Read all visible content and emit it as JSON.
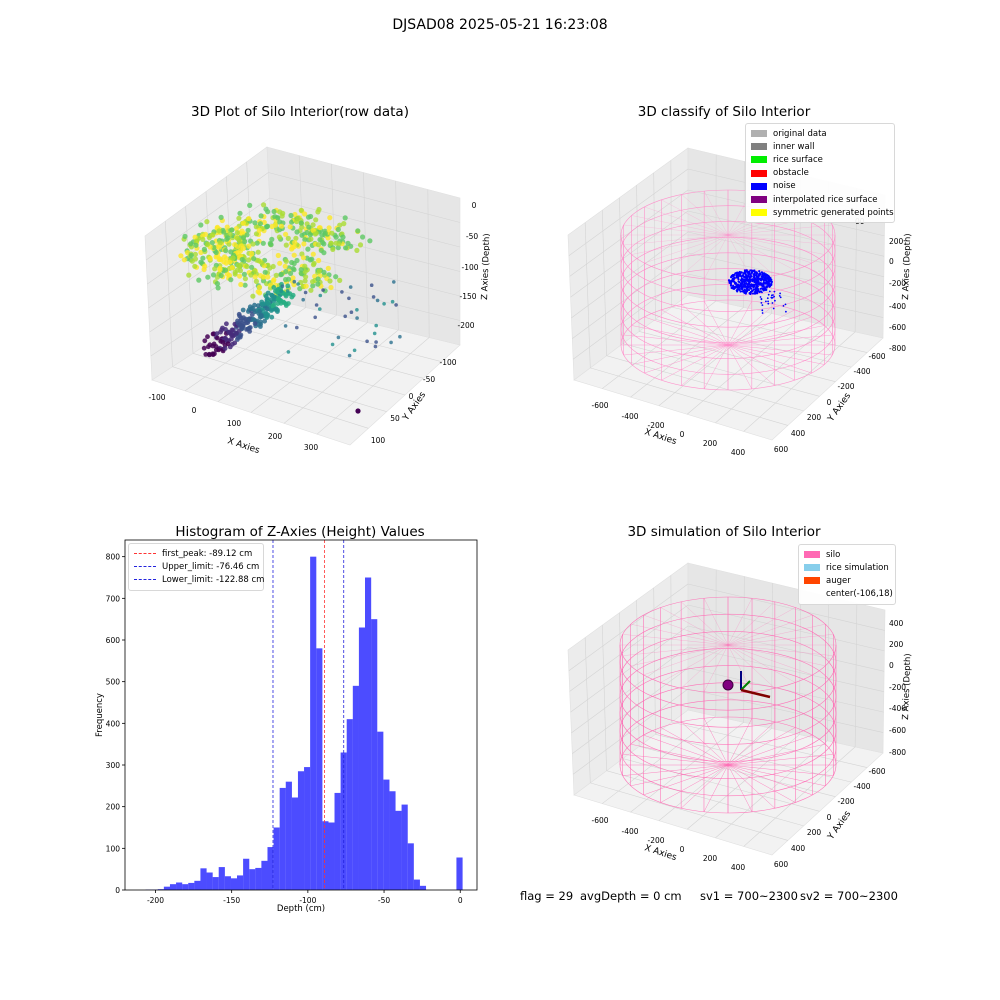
{
  "figure": {
    "suptitle": "DJSAD08 2025-05-21 16:23:08"
  },
  "footer": {
    "flag": "flag = 29",
    "avg_depth": "avgDepth = 0 cm",
    "sv1": "sv1 = 700~2300",
    "sv2": "sv2 = 700~2300"
  },
  "colors": {
    "hist_bar": "#4c4cff",
    "first_peak": "#ff3333",
    "limits": "#2222dd",
    "silo": "#ff69b4",
    "noise": "#0000ff"
  },
  "chart_data": [
    {
      "id": "raw",
      "type": "scatter",
      "title": "3D Plot of Silo Interior(row data)",
      "xlabel": "X Axies",
      "ylabel": "Y Axies",
      "zlabel": "Z Axies (Depth)",
      "xticks": [
        "-100",
        "0",
        "100",
        "200",
        "300"
      ],
      "yticks": [
        "-100",
        "-50",
        "0",
        "50",
        "100"
      ],
      "zticks": [
        "0",
        "-50",
        "-100",
        "-150",
        "-200"
      ],
      "xlim": [
        -130,
        360
      ],
      "ylim": [
        -130,
        130
      ],
      "zlim": [
        -230,
        10
      ],
      "colormap": "viridis",
      "note": "point cloud of silo interior measurements"
    },
    {
      "id": "classify",
      "type": "scatter",
      "title": "3D classify of Silo Interior",
      "xticks": [
        "-600",
        "-400",
        "-200",
        "0",
        "200",
        "400"
      ],
      "yticks": [
        "-600",
        "-400",
        "-200",
        "0",
        "200",
        "400",
        "600"
      ],
      "zticks": [
        "200",
        "0",
        "-200",
        "-400",
        "-600",
        "-800"
      ],
      "ztick_top": "00",
      "xlabel": "X Axies",
      "ylabel": "Y Axies",
      "zlabel": "Z Axies (Depth)",
      "legend": [
        {
          "label": "original data",
          "color": "#b0b0b0"
        },
        {
          "label": "inner wall",
          "color": "#808080"
        },
        {
          "label": "rice surface",
          "color": "#00ee00"
        },
        {
          "label": "obstacle",
          "color": "#ff0000"
        },
        {
          "label": "noise",
          "color": "#0000ff"
        },
        {
          "label": "interpolated rice surface",
          "color": "#800080"
        },
        {
          "label": "symmetric generated points",
          "color": "#ffff00"
        }
      ]
    },
    {
      "id": "histogram",
      "type": "bar",
      "title": "Histogram of Z-Axies (Height) Values",
      "xlabel": "Depth (cm)",
      "ylabel": "Frequency",
      "xlim": [
        -220,
        11
      ],
      "ylim": [
        0,
        840
      ],
      "xticks": [
        -200,
        -150,
        -100,
        -50,
        0
      ],
      "yticks": [
        0,
        100,
        200,
        300,
        400,
        500,
        600,
        700,
        800
      ],
      "bin_left": [
        -206.5,
        -202.5,
        -198.5,
        -194.5,
        -190.5,
        -186.5,
        -182.5,
        -178.5,
        -174.5,
        -170.5,
        -166.5,
        -162.5,
        -158.5,
        -154.5,
        -150.5,
        -146.5,
        -142.5,
        -138.5,
        -134.5,
        -130.5,
        -126.5,
        -122.5,
        -118.5,
        -114.5,
        -110.5,
        -106.5,
        -102.5,
        -98.5,
        -94.5,
        -90.5,
        -86.5,
        -82.5,
        -78.5,
        -74.5,
        -70.5,
        -66.5,
        -62.5,
        -58.5,
        -54.5,
        -50.5,
        -46.5,
        -42.5,
        -38.5,
        -34.5,
        -30.5,
        -26.5,
        -22.5,
        -18.5,
        -14.5,
        -10.5,
        -6.5,
        -2.5
      ],
      "bin_width": 4.05,
      "values": [
        1,
        1,
        2,
        8,
        14,
        18,
        14,
        17,
        22,
        52,
        42,
        31,
        55,
        33,
        28,
        35,
        75,
        50,
        53,
        70,
        103,
        150,
        245,
        260,
        222,
        285,
        295,
        800,
        580,
        165,
        162,
        233,
        330,
        410,
        490,
        630,
        750,
        650,
        380,
        265,
        237,
        190,
        205,
        112,
        25,
        10,
        0,
        0,
        0,
        0,
        0,
        78
      ],
      "vlines": [
        {
          "label": "first_peak: -89.12 cm",
          "x": -89.12,
          "color": "#ff3333"
        },
        {
          "label": "Upper_limit: -76.46 cm",
          "x": -76.46,
          "color": "#2222dd"
        },
        {
          "label": "Lower_limit: -122.88 cm",
          "x": -122.88,
          "color": "#2222dd"
        }
      ]
    },
    {
      "id": "simulation",
      "type": "scatter",
      "title": "3D simulation of Silo Interior",
      "xlabel": "X Axies",
      "ylabel": "Y Axies",
      "zlabel": "Z Axies (Depth)",
      "xticks": [
        "-600",
        "-400",
        "-200",
        "0",
        "200",
        "400"
      ],
      "yticks": [
        "-600",
        "-400",
        "-200",
        "0",
        "200",
        "400",
        "600"
      ],
      "zticks": [
        "400",
        "200",
        "0",
        "-200",
        "-400",
        "-600",
        "-800"
      ],
      "legend": [
        {
          "label": "silo",
          "color": "#ff69b4"
        },
        {
          "label": "rice simulation",
          "color": "#87ceeb"
        },
        {
          "label": "auger",
          "color": "#ff4500"
        },
        {
          "label": "center(-106,18)",
          "color": ""
        }
      ]
    }
  ]
}
